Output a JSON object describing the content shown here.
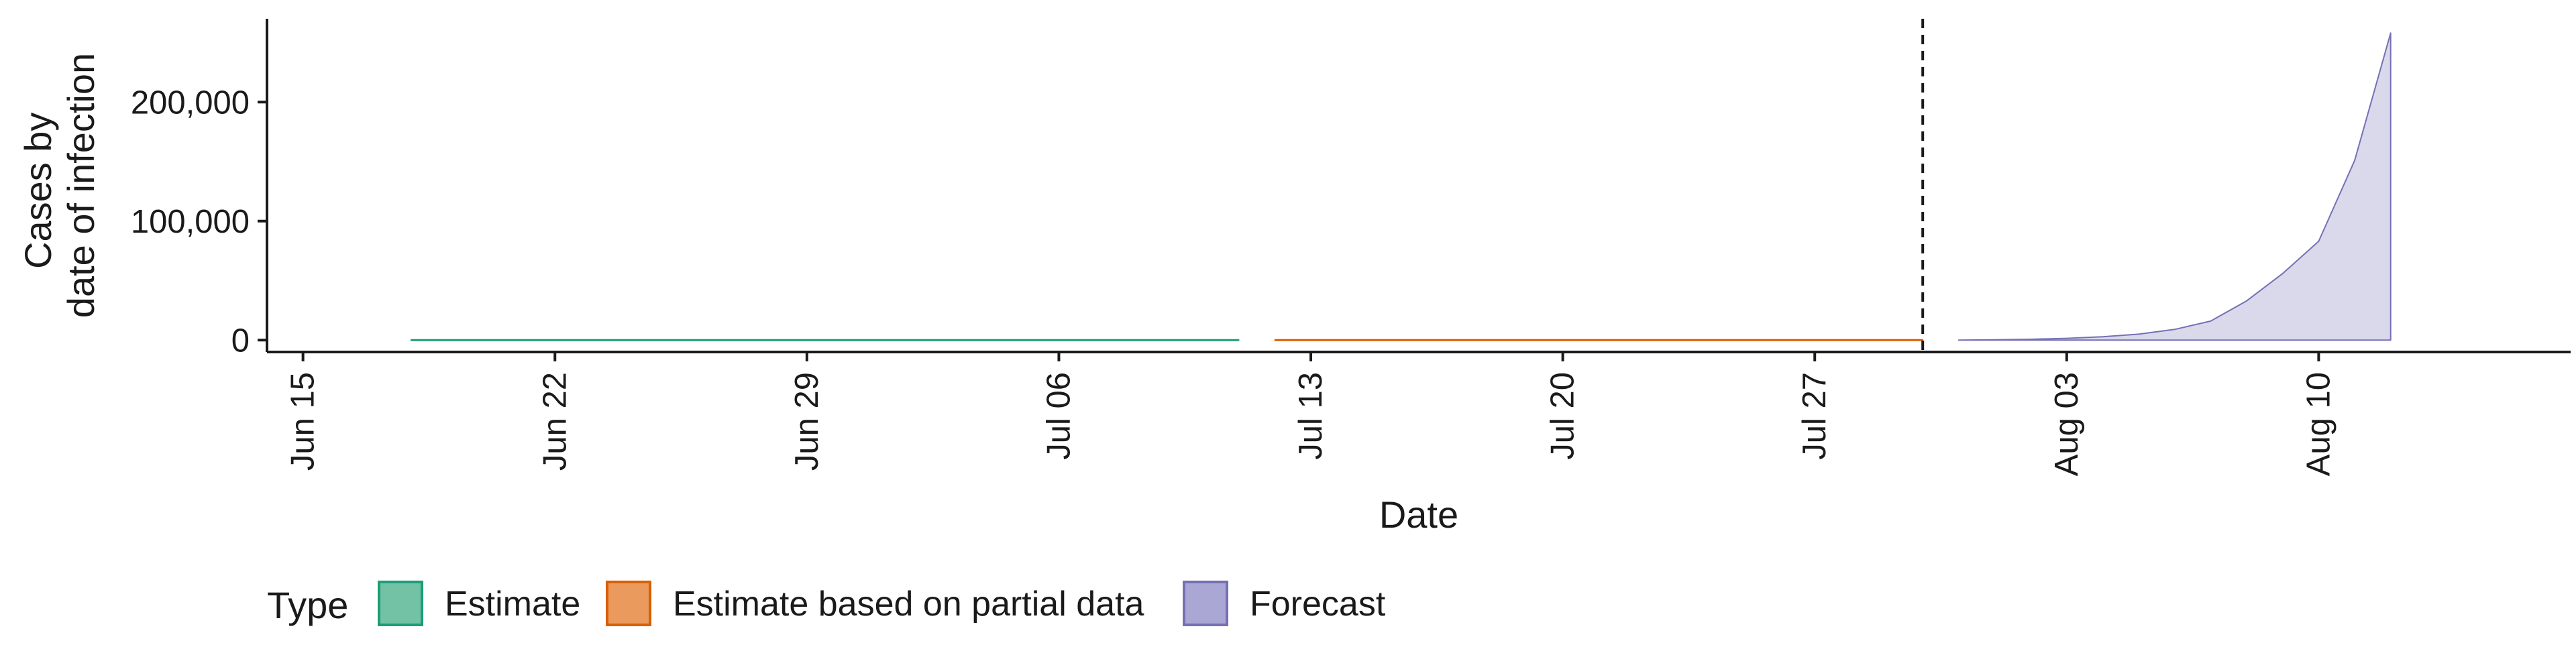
{
  "chart_data": {
    "type": "area",
    "title": "",
    "xlabel": "Date",
    "ylabel_lines": [
      "Cases by",
      "date of infection"
    ],
    "x_ticks": [
      {
        "date": "2020-06-15",
        "label": "Jun 15"
      },
      {
        "date": "2020-06-22",
        "label": "Jun 22"
      },
      {
        "date": "2020-06-29",
        "label": "Jun 29"
      },
      {
        "date": "2020-07-06",
        "label": "Jul 06"
      },
      {
        "date": "2020-07-13",
        "label": "Jul 13"
      },
      {
        "date": "2020-07-20",
        "label": "Jul 20"
      },
      {
        "date": "2020-07-27",
        "label": "Jul 27"
      },
      {
        "date": "2020-08-03",
        "label": "Aug 03"
      },
      {
        "date": "2020-08-10",
        "label": "Aug 10"
      }
    ],
    "xlim": [
      "2020-06-14",
      "2020-08-17"
    ],
    "y_ticks": [
      {
        "value": 0,
        "label": "0"
      },
      {
        "value": 100000,
        "label": "100,000"
      },
      {
        "value": 200000,
        "label": "200,000"
      }
    ],
    "ylim": [
      -10000,
      270000
    ],
    "grid": false,
    "vline_date": "2020-07-30",
    "legend": {
      "title": "Type",
      "position": "bottom",
      "entries": [
        {
          "label": "Estimate",
          "fill": "#73c2a6",
          "stroke": "#1b9e77"
        },
        {
          "label": "Estimate based on partial data",
          "fill": "#eb9a5d",
          "stroke": "#d95f02"
        },
        {
          "label": "Forecast",
          "fill": "#aaa7d4",
          "stroke": "#7570b3"
        }
      ]
    },
    "series": [
      {
        "name": "Estimate",
        "line_color": "#1b9e77",
        "fill_color": "#1b9e77",
        "points": [
          {
            "x": "2020-06-18",
            "lower": 0,
            "upper": 0,
            "median": 0
          },
          {
            "x": "2020-07-11",
            "lower": 0,
            "upper": 0,
            "median": 0
          }
        ]
      },
      {
        "name": "Estimate based on partial data",
        "line_color": "#d95f02",
        "fill_color": "#d95f02",
        "points": [
          {
            "x": "2020-07-12",
            "lower": 0,
            "upper": 0,
            "median": 0
          },
          {
            "x": "2020-07-30",
            "lower": 0,
            "upper": 0,
            "median": 0
          }
        ]
      },
      {
        "name": "Forecast",
        "line_color": "#7570b3",
        "fill_color": "#bcb9dc",
        "points": [
          {
            "x": "2020-07-31",
            "lower": 0,
            "upper": 0
          },
          {
            "x": "2020-08-01",
            "lower": 0,
            "upper": 300
          },
          {
            "x": "2020-08-02",
            "lower": 0,
            "upper": 700
          },
          {
            "x": "2020-08-03",
            "lower": 0,
            "upper": 1500
          },
          {
            "x": "2020-08-04",
            "lower": 0,
            "upper": 2800
          },
          {
            "x": "2020-08-05",
            "lower": 0,
            "upper": 5000
          },
          {
            "x": "2020-08-06",
            "lower": 0,
            "upper": 9000
          },
          {
            "x": "2020-08-07",
            "lower": 0,
            "upper": 16000
          },
          {
            "x": "2020-08-08",
            "lower": 0,
            "upper": 33000
          },
          {
            "x": "2020-08-09",
            "lower": 0,
            "upper": 56000
          },
          {
            "x": "2020-08-10",
            "lower": 0,
            "upper": 83000
          },
          {
            "x": "2020-08-11",
            "lower": 0,
            "upper": 151000
          },
          {
            "x": "2020-08-12",
            "lower": 0,
            "upper": 258000
          }
        ]
      }
    ]
  }
}
